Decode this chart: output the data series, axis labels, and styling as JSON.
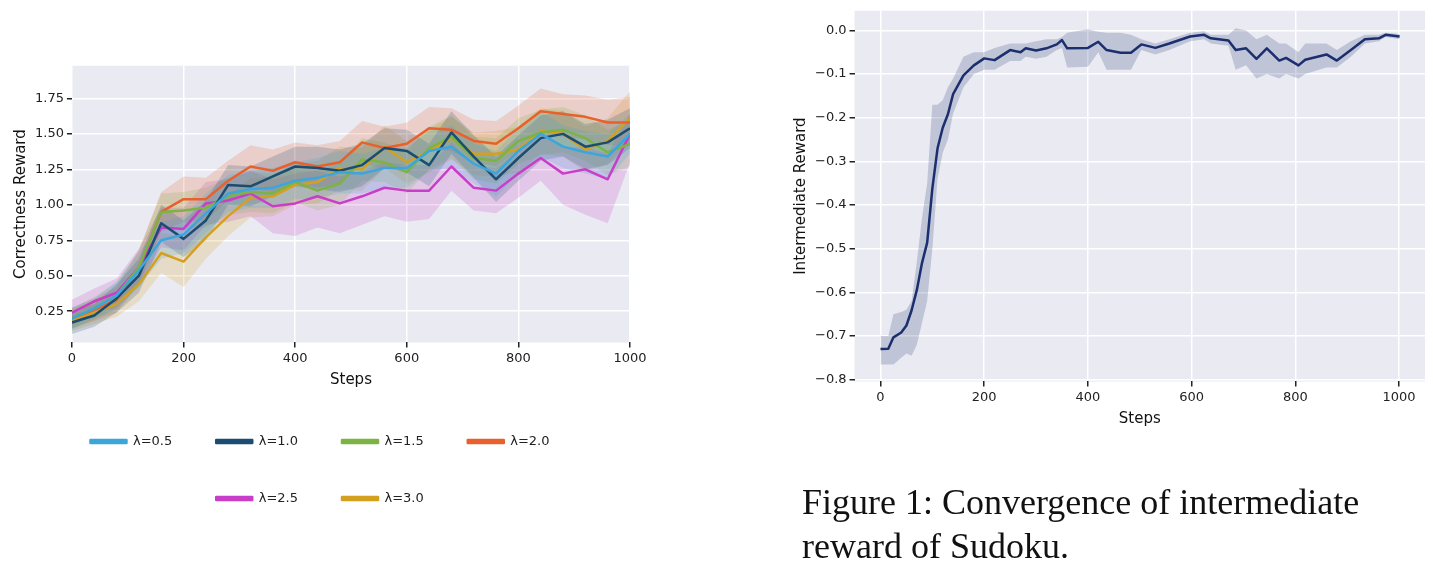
{
  "chart_data": [
    {
      "type": "line",
      "xlabel": "Steps",
      "ylabel": "Correctness Reward",
      "xlim": [
        0,
        1000
      ],
      "ylim": [
        0.03,
        1.98
      ],
      "xticks": [
        0,
        200,
        400,
        600,
        800,
        1000
      ],
      "yticks": [
        {
          "value": 0.25,
          "label": "0.25"
        },
        {
          "value": 0.5,
          "label": "0.50"
        },
        {
          "value": 0.75,
          "label": "0.75"
        },
        {
          "value": 1,
          "label": "1.00"
        },
        {
          "value": 1.25,
          "label": "1.25"
        },
        {
          "value": 1.5,
          "label": "1.50"
        },
        {
          "value": 1.75,
          "label": "1.75"
        }
      ],
      "grid": true,
      "legend": "bottom",
      "marker": "none",
      "line_style": "solid",
      "x": [
        0,
        40,
        80,
        120,
        160,
        200,
        240,
        280,
        320,
        360,
        400,
        440,
        480,
        520,
        560,
        600,
        640,
        680,
        720,
        760,
        800,
        840,
        880,
        920,
        960,
        1000
      ],
      "series": [
        {
          "name": "λ=0.5",
          "color": "#3ca6dc",
          "values": [
            0.2,
            0.27,
            0.36,
            0.54,
            0.75,
            0.79,
            0.94,
            1.08,
            1.11,
            1.12,
            1.17,
            1.19,
            1.23,
            1.22,
            1.26,
            1.26,
            1.38,
            1.41,
            1.29,
            1.22,
            1.38,
            1.5,
            1.41,
            1.37,
            1.34,
            1.5
          ],
          "lower": [
            0.12,
            0.2,
            0.26,
            0.42,
            0.62,
            0.66,
            0.8,
            0.95,
            0.98,
            0.98,
            1.04,
            1.05,
            1.08,
            1.08,
            1.12,
            1.12,
            1.24,
            1.26,
            1.15,
            1.06,
            1.22,
            1.34,
            1.26,
            1.22,
            1.18,
            1.36
          ],
          "upper": [
            0.28,
            0.34,
            0.46,
            0.66,
            0.88,
            0.92,
            1.08,
            1.21,
            1.24,
            1.26,
            1.3,
            1.33,
            1.38,
            1.36,
            1.4,
            1.4,
            1.52,
            1.56,
            1.43,
            1.38,
            1.54,
            1.66,
            1.56,
            1.52,
            1.5,
            1.64
          ]
        },
        {
          "name": "λ=1.0",
          "color": "#1b4c72",
          "values": [
            0.17,
            0.22,
            0.34,
            0.5,
            0.87,
            0.76,
            0.89,
            1.14,
            1.13,
            1.2,
            1.27,
            1.26,
            1.24,
            1.28,
            1.4,
            1.38,
            1.28,
            1.51,
            1.34,
            1.18,
            1.33,
            1.47,
            1.5,
            1.41,
            1.44,
            1.54
          ],
          "lower": [
            0.09,
            0.14,
            0.24,
            0.38,
            0.74,
            0.63,
            0.75,
            1.0,
            0.99,
            1.06,
            1.13,
            1.11,
            1.09,
            1.13,
            1.26,
            1.23,
            1.13,
            1.36,
            1.19,
            1.02,
            1.17,
            1.31,
            1.34,
            1.25,
            1.28,
            1.4
          ],
          "upper": [
            0.25,
            0.3,
            0.44,
            0.62,
            1.0,
            0.89,
            1.03,
            1.28,
            1.27,
            1.34,
            1.41,
            1.41,
            1.39,
            1.43,
            1.54,
            1.53,
            1.43,
            1.66,
            1.49,
            1.34,
            1.49,
            1.63,
            1.66,
            1.57,
            1.6,
            1.68
          ]
        },
        {
          "name": "λ=1.5",
          "color": "#7cb342",
          "values": [
            0.2,
            0.27,
            0.36,
            0.56,
            0.95,
            0.96,
            0.98,
            1.06,
            1.09,
            1.08,
            1.16,
            1.1,
            1.15,
            1.32,
            1.3,
            1.23,
            1.4,
            1.48,
            1.33,
            1.31,
            1.45,
            1.51,
            1.53,
            1.47,
            1.37,
            1.43
          ],
          "lower": [
            0.13,
            0.19,
            0.27,
            0.44,
            0.82,
            0.83,
            0.84,
            0.93,
            0.95,
            0.94,
            1.02,
            0.96,
            1.0,
            1.17,
            1.16,
            1.08,
            1.25,
            1.33,
            1.18,
            1.15,
            1.29,
            1.35,
            1.37,
            1.31,
            1.21,
            1.27
          ],
          "upper": [
            0.27,
            0.35,
            0.45,
            0.68,
            1.08,
            1.09,
            1.12,
            1.19,
            1.23,
            1.22,
            1.3,
            1.24,
            1.3,
            1.47,
            1.44,
            1.38,
            1.55,
            1.63,
            1.48,
            1.47,
            1.61,
            1.67,
            1.69,
            1.63,
            1.53,
            1.59
          ]
        },
        {
          "name": "λ=2.0",
          "color": "#e8612c",
          "values": [
            0.2,
            0.26,
            0.33,
            0.56,
            0.95,
            1.04,
            1.04,
            1.17,
            1.27,
            1.24,
            1.3,
            1.27,
            1.3,
            1.44,
            1.4,
            1.43,
            1.54,
            1.53,
            1.45,
            1.43,
            1.54,
            1.66,
            1.64,
            1.62,
            1.58,
            1.58
          ],
          "lower": [
            0.13,
            0.18,
            0.24,
            0.44,
            0.81,
            0.88,
            0.89,
            1.03,
            1.12,
            1.09,
            1.16,
            1.12,
            1.15,
            1.29,
            1.25,
            1.28,
            1.39,
            1.38,
            1.3,
            1.27,
            1.38,
            1.5,
            1.48,
            1.46,
            1.42,
            1.42
          ],
          "upper": [
            0.27,
            0.34,
            0.42,
            0.68,
            1.09,
            1.2,
            1.19,
            1.31,
            1.42,
            1.39,
            1.44,
            1.42,
            1.45,
            1.59,
            1.55,
            1.58,
            1.69,
            1.68,
            1.6,
            1.59,
            1.7,
            1.82,
            1.78,
            1.77,
            1.74,
            1.76
          ]
        },
        {
          "name": "λ=2.5",
          "color": "#c83ec8",
          "values": [
            0.24,
            0.32,
            0.38,
            0.56,
            0.84,
            0.83,
            1.01,
            1.03,
            1.08,
            0.99,
            1.01,
            1.06,
            1.01,
            1.06,
            1.12,
            1.1,
            1.1,
            1.27,
            1.12,
            1.1,
            1.22,
            1.33,
            1.22,
            1.25,
            1.18,
            1.5
          ],
          "lower": [
            0.15,
            0.23,
            0.28,
            0.43,
            0.7,
            0.68,
            0.86,
            0.88,
            0.92,
            0.8,
            0.78,
            0.84,
            0.8,
            0.86,
            0.92,
            0.88,
            0.9,
            1.1,
            0.96,
            0.94,
            1.05,
            1.17,
            1.0,
            0.93,
            0.87,
            1.3
          ],
          "upper": [
            0.33,
            0.41,
            0.48,
            0.69,
            0.98,
            0.98,
            1.16,
            1.18,
            1.24,
            1.18,
            1.22,
            1.24,
            1.2,
            1.24,
            1.3,
            1.28,
            1.28,
            1.44,
            1.28,
            1.26,
            1.38,
            1.49,
            1.4,
            1.41,
            1.36,
            1.64
          ]
        },
        {
          "name": "λ=3.0",
          "color": "#d4a020",
          "values": [
            0.19,
            0.24,
            0.3,
            0.44,
            0.66,
            0.6,
            0.77,
            0.92,
            1.05,
            1.06,
            1.14,
            1.16,
            1.26,
            1.25,
            1.41,
            1.3,
            1.38,
            1.47,
            1.36,
            1.36,
            1.39,
            1.52,
            1.5,
            1.39,
            1.45,
            1.61
          ],
          "lower": [
            0.11,
            0.16,
            0.21,
            0.32,
            0.52,
            0.42,
            0.62,
            0.78,
            0.91,
            0.92,
            1.0,
            1.01,
            1.11,
            1.1,
            1.26,
            1.15,
            1.23,
            1.32,
            1.21,
            1.2,
            1.23,
            1.36,
            1.34,
            1.23,
            1.29,
            1.45
          ],
          "upper": [
            0.27,
            0.32,
            0.39,
            0.56,
            0.8,
            0.78,
            0.92,
            1.06,
            1.19,
            1.2,
            1.28,
            1.31,
            1.41,
            1.4,
            1.56,
            1.45,
            1.53,
            1.62,
            1.51,
            1.52,
            1.55,
            1.68,
            1.66,
            1.55,
            1.61,
            1.8
          ]
        }
      ]
    },
    {
      "type": "line",
      "xlabel": "Steps",
      "ylabel": "Intermediate Reward",
      "xlim": [
        -50,
        1050
      ],
      "ylim": [
        -0.804,
        0.045
      ],
      "xticks": [
        0,
        200,
        400,
        600,
        800,
        1000
      ],
      "yticks": [
        {
          "value": -0.8,
          "label": "−0.8"
        },
        {
          "value": -0.7,
          "label": "−0.7"
        },
        {
          "value": -0.6,
          "label": "−0.6"
        },
        {
          "value": -0.5,
          "label": "−0.5"
        },
        {
          "value": -0.4,
          "label": "−0.4"
        },
        {
          "value": -0.3,
          "label": "−0.3"
        },
        {
          "value": -0.2,
          "label": "−0.2"
        },
        {
          "value": -0.1,
          "label": "−0.1"
        },
        {
          "value": 0,
          "label": "0.0"
        }
      ],
      "grid": true,
      "marker": "none",
      "line_style": "solid",
      "annotations": [
        "Figure 1: Convergence of intermediate reward of Sudoku."
      ],
      "series": [
        {
          "color": "#1b2f6e",
          "x": [
            0,
            15,
            25,
            40,
            50,
            60,
            70,
            80,
            90,
            100,
            110,
            120,
            130,
            140,
            160,
            180,
            200,
            220,
            250,
            270,
            280,
            300,
            320,
            340,
            350,
            360,
            400,
            420,
            436,
            463,
            483,
            503,
            530,
            557,
            597,
            624,
            637,
            671,
            685,
            705,
            725,
            745,
            769,
            782,
            806,
            819,
            860,
            880,
            907,
            934,
            961,
            974,
            1001
          ],
          "values": [
            -0.73,
            -0.729,
            -0.703,
            -0.692,
            -0.676,
            -0.641,
            -0.595,
            -0.533,
            -0.486,
            -0.362,
            -0.27,
            -0.223,
            -0.192,
            -0.146,
            -0.103,
            -0.08,
            -0.064,
            -0.068,
            -0.045,
            -0.05,
            -0.041,
            -0.046,
            -0.041,
            -0.032,
            -0.022,
            -0.041,
            -0.04,
            -0.026,
            -0.045,
            -0.051,
            -0.051,
            -0.032,
            -0.04,
            -0.03,
            -0.014,
            -0.01,
            -0.018,
            -0.023,
            -0.045,
            -0.041,
            -0.065,
            -0.041,
            -0.069,
            -0.063,
            -0.08,
            -0.067,
            -0.055,
            -0.069,
            -0.045,
            -0.02,
            -0.018,
            -0.01,
            -0.014
          ],
          "lower": [
            -0.765,
            -0.765,
            -0.765,
            -0.75,
            -0.74,
            -0.745,
            -0.72,
            -0.67,
            -0.62,
            -0.5,
            -0.34,
            -0.28,
            -0.25,
            -0.19,
            -0.13,
            -0.1,
            -0.09,
            -0.09,
            -0.07,
            -0.07,
            -0.06,
            -0.065,
            -0.06,
            -0.045,
            -0.04,
            -0.085,
            -0.083,
            -0.05,
            -0.09,
            -0.09,
            -0.09,
            -0.045,
            -0.055,
            -0.045,
            -0.025,
            -0.02,
            -0.03,
            -0.035,
            -0.09,
            -0.08,
            -0.11,
            -0.1,
            -0.11,
            -0.1,
            -0.11,
            -0.1,
            -0.085,
            -0.085,
            -0.06,
            -0.03,
            -0.025,
            -0.015,
            -0.02
          ],
          "upper": [
            -0.7,
            -0.7,
            -0.65,
            -0.645,
            -0.64,
            -0.62,
            -0.53,
            -0.43,
            -0.35,
            -0.17,
            -0.17,
            -0.16,
            -0.13,
            -0.11,
            -0.06,
            -0.05,
            -0.05,
            -0.04,
            -0.03,
            -0.03,
            -0.03,
            -0.025,
            -0.02,
            -0.02,
            -0.015,
            -0.005,
            0.003,
            -0.003,
            -0.005,
            -0.005,
            -0.01,
            -0.02,
            -0.03,
            -0.02,
            -0.005,
            -0.002,
            -0.01,
            -0.01,
            0.005,
            0.0,
            -0.02,
            -0.01,
            -0.03,
            -0.03,
            -0.05,
            -0.03,
            -0.03,
            -0.045,
            -0.025,
            -0.01,
            -0.01,
            -0.005,
            -0.008
          ]
        }
      ]
    }
  ]
}
